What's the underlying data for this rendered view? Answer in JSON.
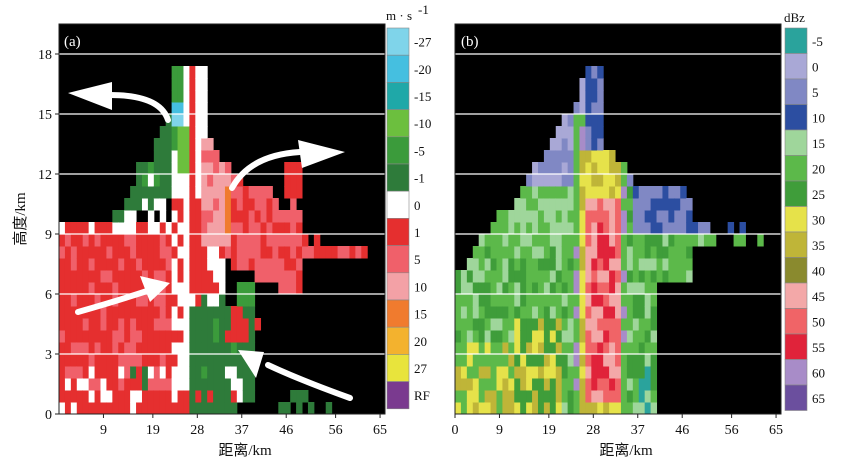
{
  "chart_data": [
    {
      "type": "heatmap",
      "panel_label": "(a)",
      "xlabel": "距离/km",
      "ylabel": "高度/km",
      "xlim": [
        0,
        66
      ],
      "ylim": [
        0,
        19.5
      ],
      "xticks": [
        "9",
        "19",
        "28",
        "37",
        "46",
        "56",
        "65"
      ],
      "yticks": [
        "0",
        "3",
        "6",
        "9",
        "12",
        "15",
        "18"
      ],
      "grid": true,
      "colorbar": {
        "unit": "m · s",
        "unit_exp": "-1",
        "labels": [
          "-27",
          "-20",
          "-15",
          "-10",
          "-5",
          "-1",
          "0",
          "1",
          "5",
          "10",
          "15",
          "20",
          "27",
          "RF"
        ],
        "colors": [
          "#7fd4ea",
          "#45bfe0",
          "#1fa8a8",
          "#6cbf3e",
          "#3b9b3b",
          "#2e7b3a",
          "#ffffff",
          "#e52f2f",
          "#f0606a",
          "#f3a1a6",
          "#f07b2e",
          "#f3b22e",
          "#e8e43c",
          "#7a3a8f"
        ]
      },
      "annotation": "flow arrows (white)"
    },
    {
      "type": "heatmap",
      "panel_label": "(b)",
      "xlabel": "距离/km",
      "ylabel": "",
      "xlim": [
        0,
        66
      ],
      "ylim": [
        0,
        19.5
      ],
      "xticks": [
        "0",
        "9",
        "19",
        "28",
        "37",
        "46",
        "56",
        "65"
      ],
      "yticks": [],
      "grid": true,
      "colorbar": {
        "unit": "dBz",
        "labels": [
          "-5",
          "0",
          "5",
          "10",
          "15",
          "20",
          "25",
          "30",
          "35",
          "40",
          "45",
          "50",
          "55",
          "60",
          "65"
        ],
        "colors": [
          "#2aa39c",
          "#a9a8d6",
          "#8088c4",
          "#2c4ea1",
          "#9fd69b",
          "#5cb94a",
          "#3f9d3a",
          "#e6e24a",
          "#bfb538",
          "#8a8a2e",
          "#f3a8a8",
          "#f06467",
          "#e0233a",
          "#a88cc8",
          "#6b4f9e"
        ]
      }
    }
  ]
}
